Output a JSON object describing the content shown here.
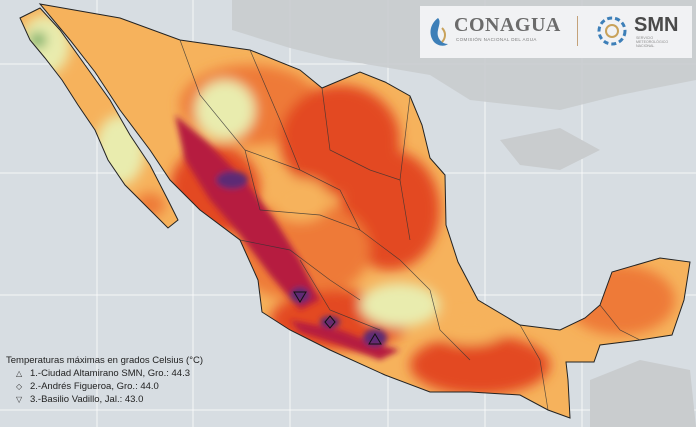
{
  "logos": {
    "conagua_name": "CONAGUA",
    "conagua_tagline": "COMISIÓN NACIONAL DEL AGUA",
    "smn_name": "SMN",
    "smn_tagline": "SERVICIO METEOROLÓGICO NACIONAL"
  },
  "legend": {
    "title": "Temperaturas máximas en grados Celsius (°C)",
    "entries": [
      {
        "symbol": "△",
        "label": "1.-Ciudad Altamirano SMN, Gro.: 44.3"
      },
      {
        "symbol": "◇",
        "label": "2.-Andrés Figueroa, Gro.: 44.0"
      },
      {
        "symbol": "▽",
        "label": "3.-Basilio Vadillo, Jal.: 43.0"
      }
    ]
  },
  "colors": {
    "ocean": "#d7dde2",
    "land_other": "#c9ccce",
    "cool": "#e9ecae",
    "warm": "#f6b25c",
    "hot": "#ee7a38",
    "hotter": "#e34a24",
    "hottest": "#b61c3f",
    "extreme": "#5d2a75"
  }
}
